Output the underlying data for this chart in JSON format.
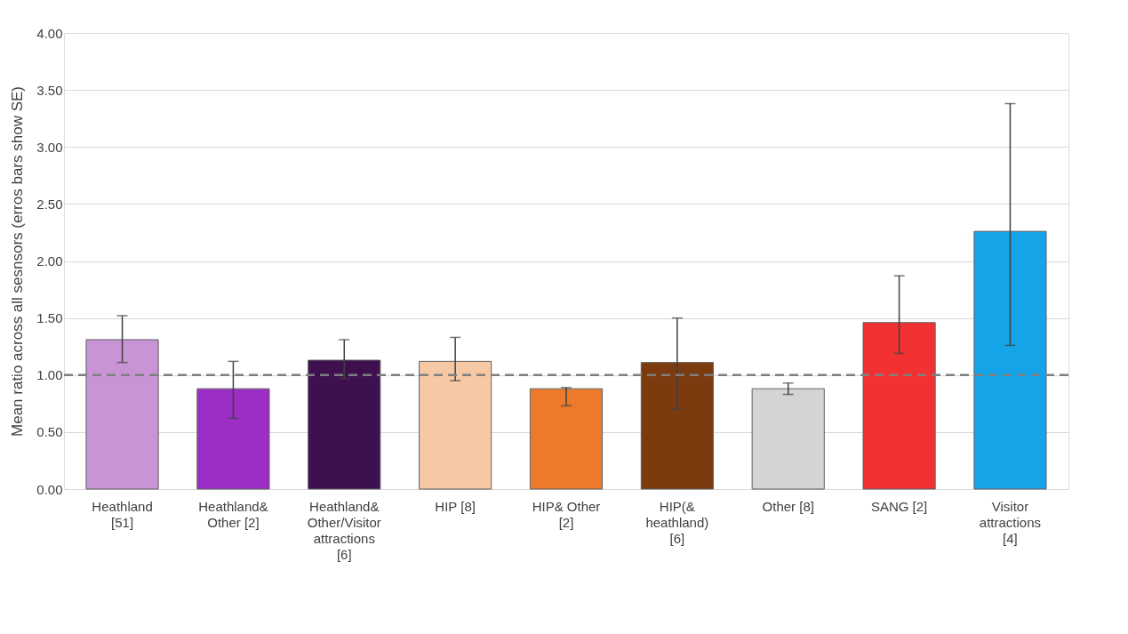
{
  "chart_data": {
    "type": "bar",
    "ylabel": "Mean ratio across all sesnsors (erros bars show SE)",
    "categories": [
      "Heathland\n[51]",
      "Heathland&\nOther [2]",
      "Heathland&\nOther/Visitor\nattractions\n[6]",
      "HIP [8]",
      "HIP& Other\n[2]",
      "HIP(&\nheathland)\n[6]",
      "Other [8]",
      "SANG [2]",
      "Visitor\nattractions\n[4]"
    ],
    "values": [
      1.31,
      0.88,
      1.13,
      1.12,
      0.88,
      1.11,
      0.88,
      1.46,
      2.26
    ],
    "colors": [
      "#c994d6",
      "#9b2fc5",
      "#3f1050",
      "#f7c8a4",
      "#ec7a2b",
      "#7b3b0e",
      "#d4d4d4",
      "#f23232",
      "#16a4e8"
    ],
    "errors": [
      [
        1.11,
        1.52
      ],
      [
        0.62,
        1.12
      ],
      [
        0.97,
        1.31
      ],
      [
        0.95,
        1.33
      ],
      [
        0.73,
        0.89
      ],
      [
        0.7,
        1.5
      ],
      [
        0.83,
        0.93
      ],
      [
        1.19,
        1.87
      ],
      [
        1.26,
        3.38
      ]
    ],
    "ylim": [
      0,
      4
    ],
    "yticks": [
      {
        "value": 0,
        "label": "0.00"
      },
      {
        "value": 0.5,
        "label": "0.50"
      },
      {
        "value": 1,
        "label": "1.00"
      },
      {
        "value": 1.5,
        "label": "1.50"
      },
      {
        "value": 2,
        "label": "2.00"
      },
      {
        "value": 2.5,
        "label": "2.50"
      },
      {
        "value": 3,
        "label": "3.00"
      },
      {
        "value": 3.5,
        "label": "3.50"
      },
      {
        "value": 4,
        "label": "4.00"
      }
    ],
    "ref_lines": [
      {
        "axis": "y",
        "value": 1,
        "color": "#7f7f7f",
        "line_style": "dashed"
      }
    ],
    "grid": "y"
  }
}
